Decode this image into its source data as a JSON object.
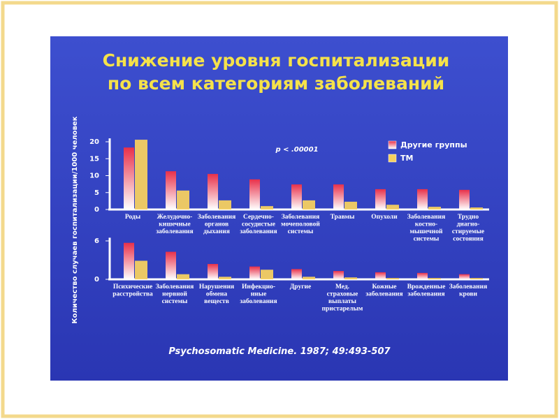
{
  "title": "Снижение уровня госпитализации\nпо всем категориям заболеваний",
  "y_label": "Количество случаев госпитализации/1000 человек",
  "annotation": "p < .00001",
  "source": "Psychosomatic Medicine. 1987; 49:493-507",
  "chart_data": [
    {
      "type": "bar",
      "categories": [
        "Роды",
        "Желудочно-\nкишечные\nзаболевания",
        "Заболевания\nорганов\nдыхания",
        "Сердечно-\nсосудистые\nзаболевания",
        "Заболевания\nмочеполовой\nсистемы",
        "Травмы",
        "Опухоли",
        "Заболевания\nкостно-\nмышечной\nсистемы",
        "Трудно\nдиагно-\nстируемые\nсостояния"
      ],
      "series": [
        {
          "name": "Другие группы",
          "color": "#e8304a",
          "values": [
            18.3,
            11.3,
            10.5,
            8.9,
            7.4,
            7.4,
            6.0,
            6.0,
            5.8
          ]
        },
        {
          "name": "ТМ",
          "color": "#f5d060",
          "values": [
            20.6,
            5.6,
            2.7,
            1.0,
            2.7,
            2.3,
            1.4,
            0.8,
            0.6
          ]
        }
      ],
      "ylim": [
        0,
        21
      ],
      "yticks": [
        0,
        5,
        10,
        15,
        20
      ]
    },
    {
      "type": "bar",
      "categories": [
        "Психические\nрасстройства",
        "Заболевания\nнервной\nсистемы",
        "Нарушения\nобмена\nвеществ",
        "Инфекцио-\nнные\nзаболевания",
        "Другие",
        "Мед.\nстраховые\nвыплаты\nпристарелым",
        "Кожные\nзаболевания",
        "Врожденные\nзаболевания",
        "Заболевания\nкрови"
      ],
      "series": [
        {
          "color": "#e8304a",
          "values": [
            5.7,
            4.3,
            2.4,
            2.0,
            1.6,
            1.3,
            1.1,
            1.0,
            0.8
          ]
        },
        {
          "color": "#f5d060",
          "values": [
            2.9,
            0.8,
            0.4,
            1.5,
            0.4,
            0.3,
            0.2,
            0.2,
            0.2
          ]
        }
      ],
      "ylim": [
        0,
        6.5
      ],
      "yticks": [
        0,
        6
      ]
    }
  ]
}
